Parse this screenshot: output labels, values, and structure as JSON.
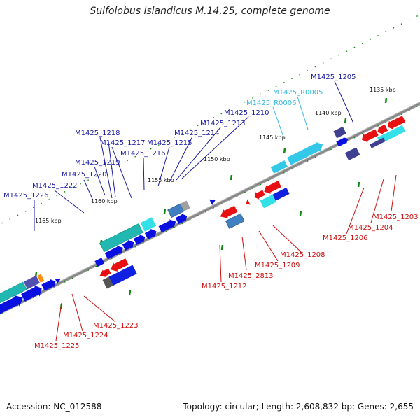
{
  "title": "Sulfolobus islandicus M.14.25, complete genome",
  "footer": {
    "accession": "Accession: NC_012588",
    "topology": "Topology: circular; Length: 2,608,832 bp; Genes: 2,655"
  },
  "colors": {
    "forward_gene": "#0a10e0",
    "reverse_gene": "#e81010",
    "rna": "#33c8e8",
    "backbone": "#8a8a8a",
    "ticks": "#118811",
    "forward_label": "#1a1aa0",
    "reverse_label": "#cc1010",
    "rna_label": "#33bbdd"
  },
  "scale_ticks": [
    "1135 kbp",
    "1140 kbp",
    "1145 kbp",
    "1150 kbp",
    "1155 kbp",
    "1160 kbp",
    "1165 kbp"
  ],
  "forward_labels": [
    "M1425_1205",
    "M1425_R0005",
    "M1425_R0006",
    "M1425_1210",
    "M1425_1213",
    "M1425_1214",
    "M1425_1215",
    "M1425_1216",
    "M1425_1217",
    "M1425_1218",
    "M1425_1219",
    "M1425_1220",
    "M1425_1222",
    "M1425_1226"
  ],
  "reverse_labels": [
    "M1425_1203",
    "M1425_1204",
    "M1425_1206",
    "M1425_1208",
    "M1425_1209",
    "M1425_2813",
    "M1425_1212",
    "M1425_1223",
    "M1425_1224",
    "M1425_1225"
  ]
}
